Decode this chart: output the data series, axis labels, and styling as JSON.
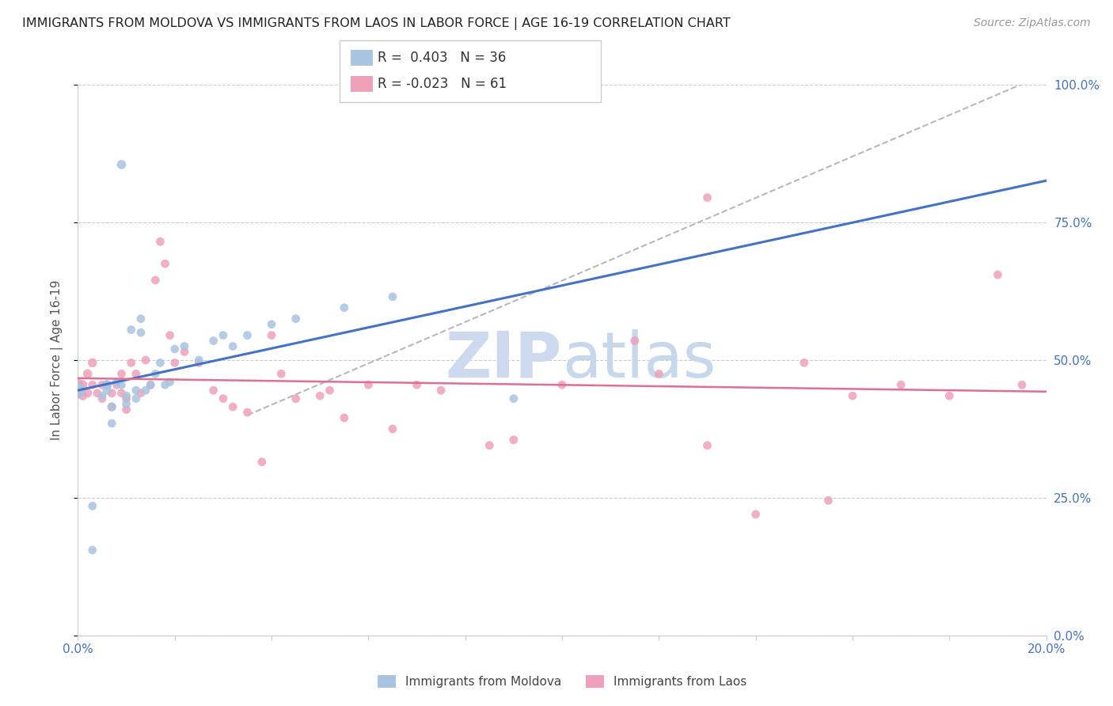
{
  "title": "IMMIGRANTS FROM MOLDOVA VS IMMIGRANTS FROM LAOS IN LABOR FORCE | AGE 16-19 CORRELATION CHART",
  "source": "Source: ZipAtlas.com",
  "ylabel": "In Labor Force | Age 16-19",
  "xlim": [
    0.0,
    0.2
  ],
  "ylim": [
    0.0,
    1.0
  ],
  "ytick_vals": [
    0.0,
    0.25,
    0.5,
    0.75,
    1.0
  ],
  "moldova_R": 0.403,
  "moldova_N": 36,
  "laos_R": -0.023,
  "laos_N": 61,
  "moldova_color": "#a8c4e0",
  "laos_color": "#f0a0b8",
  "moldova_line_color": "#4472c4",
  "laos_line_color": "#e07090",
  "trendline_dashed_color": "#b8b8b8",
  "background_color": "#ffffff",
  "watermark_color": "#ccd9ee",
  "grid_color": "#cccccc",
  "moldova_points_x": [
    0.0,
    0.003,
    0.003,
    0.005,
    0.006,
    0.006,
    0.007,
    0.007,
    0.008,
    0.009,
    0.009,
    0.01,
    0.01,
    0.011,
    0.012,
    0.012,
    0.013,
    0.013,
    0.014,
    0.015,
    0.016,
    0.017,
    0.018,
    0.019,
    0.02,
    0.022,
    0.025,
    0.028,
    0.03,
    0.032,
    0.035,
    0.04,
    0.045,
    0.055,
    0.065,
    0.09
  ],
  "moldova_points_y": [
    0.445,
    0.235,
    0.155,
    0.435,
    0.455,
    0.445,
    0.415,
    0.385,
    0.46,
    0.855,
    0.455,
    0.435,
    0.42,
    0.555,
    0.445,
    0.43,
    0.575,
    0.55,
    0.445,
    0.455,
    0.475,
    0.495,
    0.455,
    0.46,
    0.52,
    0.525,
    0.5,
    0.535,
    0.545,
    0.525,
    0.545,
    0.565,
    0.575,
    0.595,
    0.615,
    0.43
  ],
  "moldova_sizes": [
    200,
    60,
    60,
    55,
    80,
    70,
    65,
    60,
    60,
    70,
    60,
    60,
    60,
    60,
    60,
    60,
    60,
    60,
    60,
    60,
    60,
    60,
    60,
    60,
    60,
    60,
    60,
    60,
    60,
    60,
    60,
    60,
    60,
    60,
    60,
    60
  ],
  "laos_points_x": [
    0.0,
    0.0,
    0.001,
    0.001,
    0.002,
    0.002,
    0.003,
    0.003,
    0.004,
    0.005,
    0.005,
    0.006,
    0.007,
    0.007,
    0.008,
    0.009,
    0.009,
    0.01,
    0.01,
    0.011,
    0.012,
    0.013,
    0.014,
    0.015,
    0.016,
    0.017,
    0.018,
    0.019,
    0.02,
    0.022,
    0.025,
    0.028,
    0.03,
    0.032,
    0.035,
    0.038,
    0.04,
    0.042,
    0.045,
    0.05,
    0.052,
    0.055,
    0.06,
    0.065,
    0.07,
    0.075,
    0.085,
    0.09,
    0.1,
    0.115,
    0.12,
    0.13,
    0.14,
    0.15,
    0.155,
    0.16,
    0.17,
    0.18,
    0.19,
    0.195,
    0.13
  ],
  "laos_points_y": [
    0.455,
    0.44,
    0.455,
    0.435,
    0.475,
    0.44,
    0.495,
    0.455,
    0.44,
    0.43,
    0.455,
    0.455,
    0.44,
    0.415,
    0.455,
    0.475,
    0.44,
    0.43,
    0.41,
    0.495,
    0.475,
    0.44,
    0.5,
    0.455,
    0.645,
    0.715,
    0.675,
    0.545,
    0.495,
    0.515,
    0.495,
    0.445,
    0.43,
    0.415,
    0.405,
    0.315,
    0.545,
    0.475,
    0.43,
    0.435,
    0.445,
    0.395,
    0.455,
    0.375,
    0.455,
    0.445,
    0.345,
    0.355,
    0.455,
    0.535,
    0.475,
    0.345,
    0.22,
    0.495,
    0.245,
    0.435,
    0.455,
    0.435,
    0.655,
    0.455,
    0.795
  ],
  "laos_sizes": [
    120,
    100,
    70,
    65,
    70,
    65,
    70,
    60,
    60,
    60,
    60,
    60,
    60,
    60,
    60,
    60,
    60,
    60,
    60,
    60,
    60,
    60,
    60,
    60,
    60,
    60,
    60,
    60,
    60,
    60,
    60,
    60,
    60,
    60,
    60,
    60,
    60,
    60,
    60,
    60,
    60,
    60,
    60,
    60,
    60,
    60,
    60,
    60,
    60,
    60,
    60,
    60,
    60,
    60,
    60,
    60,
    60,
    60,
    60,
    60,
    60
  ]
}
